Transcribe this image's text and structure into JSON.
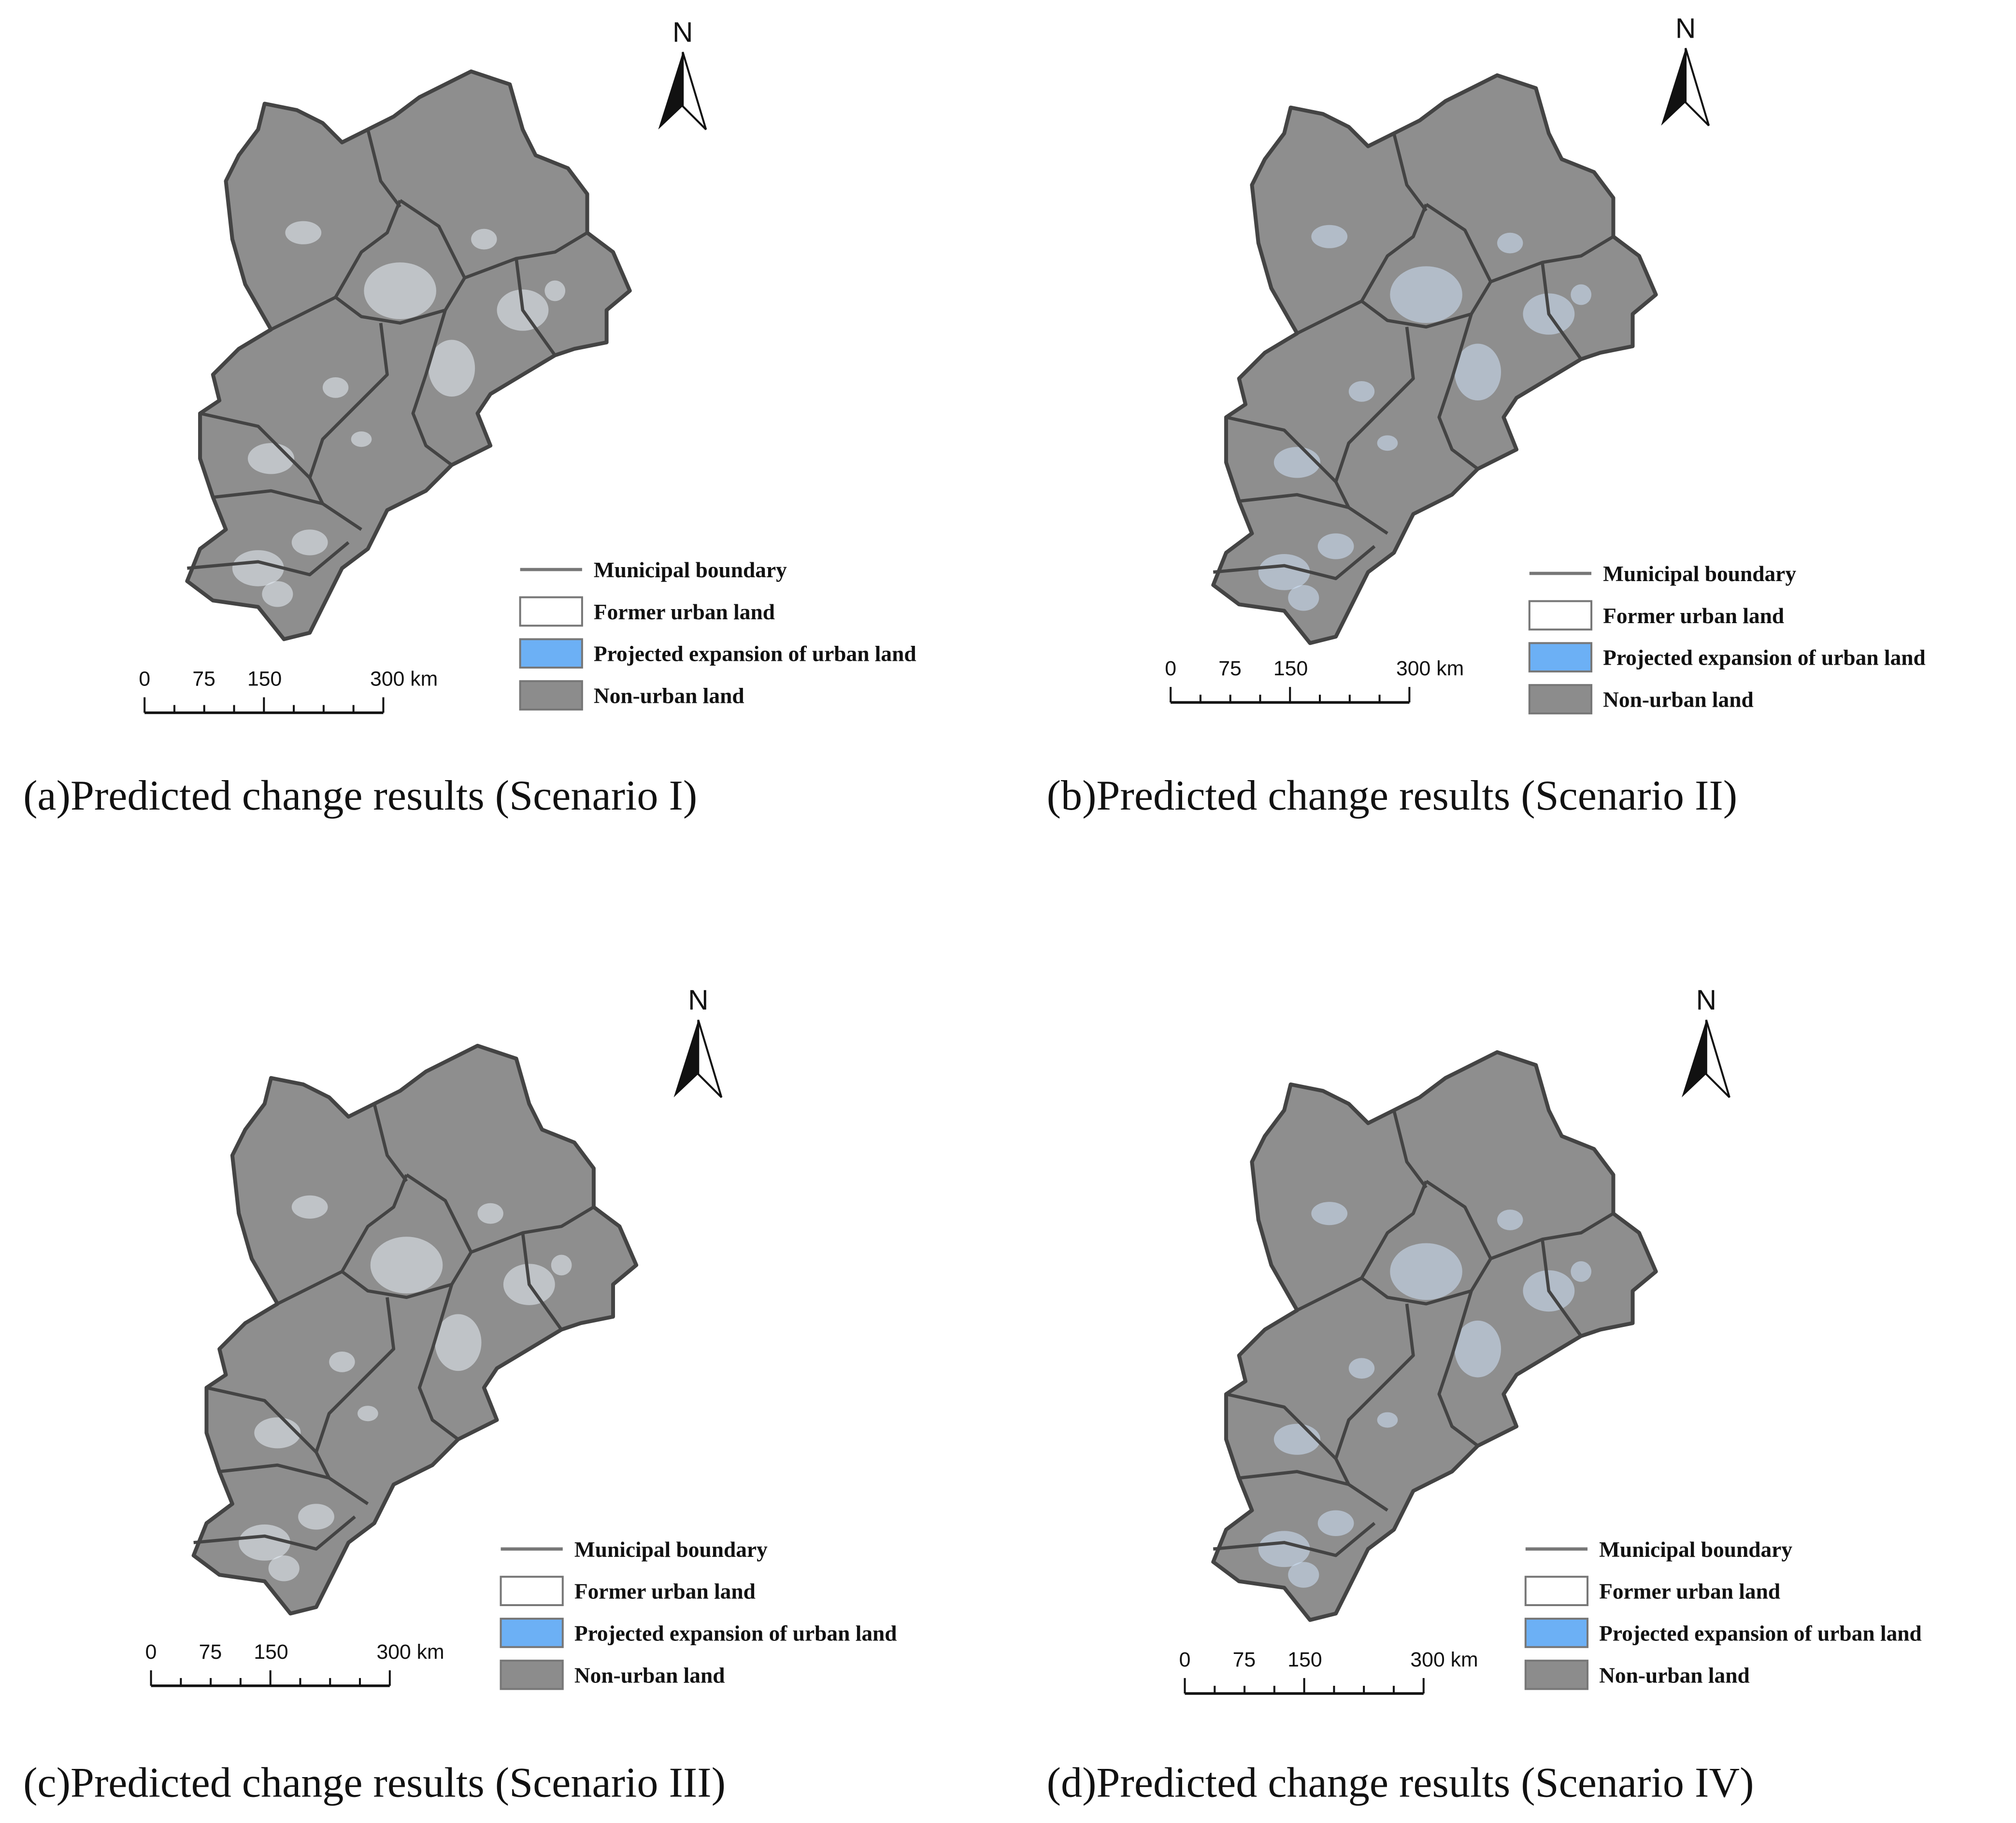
{
  "panels": [
    {
      "caption": "(a)Predicted change results (Scenario I)",
      "north": "N",
      "legend": [
        "Municipal boundary",
        "Former urban land",
        "Projected expansion of urban land",
        "Non-urban land"
      ],
      "scale_labels": [
        "0",
        "75",
        "150",
        "300 km"
      ]
    },
    {
      "caption": "(b)Predicted change results (Scenario II)",
      "north": "N",
      "legend": [
        "Municipal boundary",
        "Former urban land",
        "Projected expansion of urban land",
        "Non-urban land"
      ],
      "scale_labels": [
        "0",
        "75",
        "150",
        "300 km"
      ]
    },
    {
      "caption": "(c)Predicted change results (Scenario III)",
      "north": "N",
      "legend": [
        "Municipal boundary",
        "Former urban land",
        "Projected expansion of urban land",
        "Non-urban land"
      ],
      "scale_labels": [
        "0",
        "75",
        "150",
        "300 km"
      ]
    },
    {
      "caption": "(d)Predicted change results (Scenario IV)",
      "north": "N",
      "legend": [
        "Municipal boundary",
        "Former urban land",
        "Projected expansion of urban land",
        "Non-urban land"
      ],
      "scale_labels": [
        "0",
        "75",
        "150",
        "300 km"
      ]
    }
  ]
}
